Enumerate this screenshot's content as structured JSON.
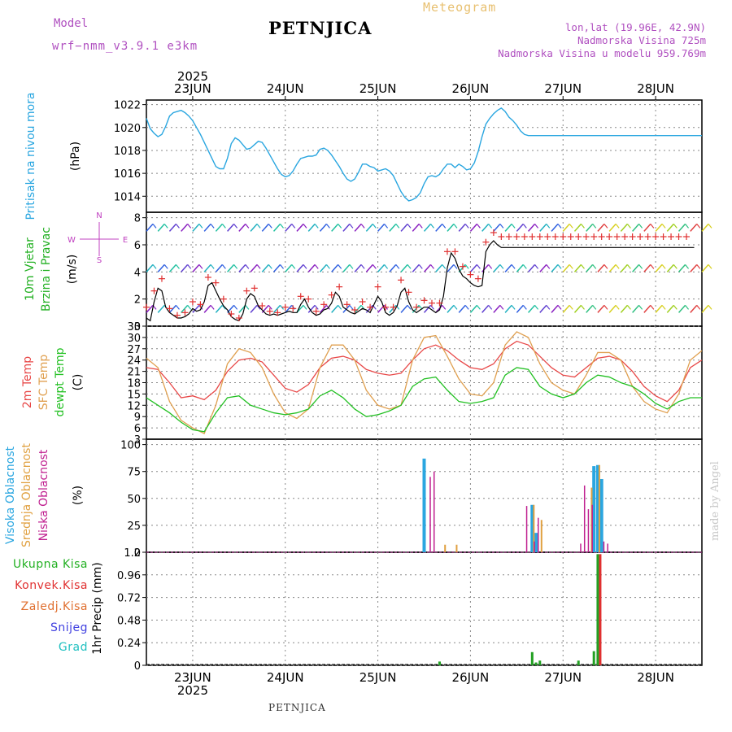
{
  "header": {
    "doc_title": "Meteogram",
    "station": "PETNJICA",
    "model_label": "Model",
    "model_name": "wrf−nmm_v3.9.1 e3km",
    "lonlat": "lon,lat (19.96E, 42.9N)",
    "altitude": "Nadmorska Visina 725m",
    "model_altitude": "Nadmorska Visina u modelu 959.769m"
  },
  "footer": {
    "station": "PETNJICA",
    "credit": "made by Angel"
  },
  "colors": {
    "pressure": "#2aa6e0",
    "temp2m": "#e84848",
    "sfc": "#e0a050",
    "dewpt": "#22c022",
    "wind_speed": "#000000",
    "gust_marker": "#e03030",
    "cloud_high": "#2aa6e0",
    "cloud_mid": "#e0a040",
    "cloud_low": "#c02090",
    "precip_total": "#22a022",
    "precip_conv": "#e03030",
    "precip_snow": "#4040e0"
  },
  "chart_data": [
    {
      "type": "line",
      "panel": "pressure",
      "title": "Pritisak na nivou mora",
      "ylabel": "Pritisak na nivou mora",
      "yunit": "(hPa)",
      "ylim": [
        1012.6,
        1022.4
      ],
      "yticks": [
        1014,
        1016,
        1018,
        1020,
        1022
      ],
      "top_date_labels": [
        "23JUN",
        "24JUN",
        "25JUN",
        "26JUN",
        "27JUN",
        "28JUN"
      ],
      "top_year": "2025",
      "x_hours_range": [
        0,
        144
      ],
      "x": [
        0,
        1,
        2,
        3,
        4,
        5,
        6,
        7,
        8,
        9,
        10,
        11,
        12,
        13,
        14,
        15,
        16,
        17,
        18,
        19,
        20,
        21,
        22,
        23,
        24,
        25,
        26,
        27,
        28,
        29,
        30,
        31,
        32,
        33,
        34,
        35,
        36,
        37,
        38,
        39,
        40,
        41,
        42,
        43,
        44,
        45,
        46,
        47,
        48,
        49,
        50,
        51,
        52,
        53,
        54,
        55,
        56,
        57,
        58,
        59,
        60,
        61,
        62,
        63,
        64,
        65,
        66,
        67,
        68,
        69,
        70,
        71,
        72,
        73,
        74,
        75,
        76,
        77,
        78,
        79,
        80,
        81,
        82,
        83,
        84,
        85,
        86,
        87,
        88,
        89,
        90,
        91,
        92,
        93,
        94,
        95,
        96,
        97,
        98,
        99,
        100,
        101,
        102,
        103,
        104,
        105,
        106,
        107,
        108,
        109,
        110,
        111,
        112,
        113,
        114,
        115,
        116,
        117,
        118,
        119,
        120,
        121,
        122,
        123,
        124,
        125,
        126,
        127,
        128,
        129,
        130,
        131,
        132,
        133,
        134,
        135,
        136,
        137,
        138,
        139,
        140,
        141,
        142,
        143,
        144
      ],
      "series": [
        {
          "name": "Pritisak",
          "values": [
            1020.8,
            1019.9,
            1019.5,
            1019.2,
            1019.4,
            1020.1,
            1021.0,
            1021.3,
            1021.4,
            1021.5,
            1021.3,
            1021.0,
            1020.6,
            1020.0,
            1019.4,
            1018.7,
            1018.0,
            1017.3,
            1016.6,
            1016.4,
            1016.4,
            1017.3,
            1018.6,
            1019.1,
            1018.9,
            1018.5,
            1018.1,
            1018.2,
            1018.5,
            1018.8,
            1018.7,
            1018.2,
            1017.6,
            1017.0,
            1016.4,
            1015.9,
            1015.7,
            1015.8,
            1016.2,
            1016.8,
            1017.3,
            1017.4,
            1017.5,
            1017.5,
            1017.6,
            1018.1,
            1018.2,
            1018.0,
            1017.6,
            1017.1,
            1016.6,
            1016.0,
            1015.5,
            1015.3,
            1015.5,
            1016.1,
            1016.8,
            1016.8,
            1016.6,
            1016.5,
            1016.2,
            1016.3,
            1016.4,
            1016.2,
            1015.8,
            1015.1,
            1014.4,
            1013.9,
            1013.6,
            1013.7,
            1013.9,
            1014.3,
            1015.1,
            1015.7,
            1015.8,
            1015.7,
            1015.9,
            1016.4,
            1016.8,
            1016.8,
            1016.5,
            1016.8,
            1016.6,
            1016.3,
            1016.4,
            1016.9,
            1017.9,
            1019.2,
            1020.3,
            1020.8,
            1021.2,
            1021.5,
            1021.7,
            1021.4,
            1020.9,
            1020.6,
            1020.2,
            1019.7,
            1019.4,
            1019.3,
            1019.3,
            1019.3,
            1019.3,
            1019.3,
            1019.3,
            1019.3,
            1019.3,
            1019.3,
            1019.3,
            1019.3,
            1019.3,
            1019.3,
            1019.3,
            1019.3,
            1019.3,
            1019.3,
            1019.3,
            1019.3,
            1019.3,
            1019.3,
            1019.3,
            1019.3,
            1019.3,
            1019.3,
            1019.3,
            1019.3,
            1019.3,
            1019.3,
            1019.3,
            1019.3,
            1019.3,
            1019.3,
            1019.3,
            1019.3,
            1019.3,
            1019.3,
            1019.3,
            1019.3,
            1019.3,
            1019.3,
            1019.3,
            1019.3,
            1019.3,
            1019.3,
            1019.3
          ]
        }
      ]
    },
    {
      "type": "line",
      "panel": "wind",
      "title": "10m Vjetar Brzina i Pravac",
      "ylabel_lines": [
        "10m Vjetar",
        "Brzina i Pravac"
      ],
      "yunit": "(m/s)",
      "compass": [
        "N",
        "W",
        "E",
        "S"
      ],
      "ylim": [
        0,
        8.4
      ],
      "yticks": [
        0,
        2,
        4,
        6,
        8
      ],
      "barb_rows": [
        1,
        4,
        7
      ],
      "series": [
        {
          "name": "Brzina vjetra",
          "values": [
            0.6,
            0.4,
            1.8,
            2.8,
            2.6,
            1.4,
            1.0,
            0.8,
            0.6,
            0.6,
            0.7,
            0.9,
            1.3,
            1.1,
            1.2,
            1.8,
            3.0,
            3.2,
            2.6,
            2.0,
            1.5,
            1.2,
            0.7,
            0.5,
            0.4,
            0.9,
            2.0,
            2.4,
            2.2,
            1.5,
            1.2,
            0.9,
            0.8,
            0.9,
            0.8,
            0.9,
            1.0,
            1.1,
            1.0,
            1.0,
            1.6,
            2.0,
            1.4,
            1.0,
            0.8,
            0.9,
            1.2,
            1.3,
            1.7,
            2.5,
            2.2,
            1.4,
            1.2,
            1.0,
            0.9,
            1.1,
            1.3,
            1.2,
            1.0,
            1.6,
            2.2,
            1.8,
            1.0,
            0.8,
            1.0,
            1.5,
            2.5,
            2.8,
            1.8,
            1.2,
            1.0,
            1.2,
            1.4,
            1.4,
            1.2,
            1.0,
            1.2,
            2.2,
            4.3,
            5.4,
            5.0,
            4.2,
            3.7,
            3.5,
            3.2,
            3.0,
            2.9,
            3.0,
            5.5,
            6.0,
            6.3,
            6.0,
            5.8,
            5.8,
            5.8,
            5.8,
            5.8,
            5.8,
            5.8,
            5.8,
            5.8,
            5.8,
            5.8,
            5.8,
            5.8,
            5.8,
            5.8,
            5.8,
            5.8,
            5.8,
            5.8,
            5.8,
            5.8,
            5.8,
            5.8,
            5.8,
            5.8,
            5.8,
            5.8,
            5.8,
            5.8,
            5.8,
            5.8,
            5.8,
            5.8,
            5.8,
            5.8,
            5.8,
            5.8,
            5.8,
            5.8,
            5.8,
            5.8,
            5.8,
            5.8,
            5.8,
            5.8,
            5.8,
            5.8,
            5.8,
            5.8,
            5.8,
            5.8
          ]
        },
        {
          "name": "Udari",
          "values": [
            1.4,
            0.8,
            2.6,
            3.8,
            3.5,
            2.0,
            1.3,
            1.0,
            0.8,
            0.9,
            1.0,
            1.2,
            1.8,
            1.4,
            1.6,
            2.5,
            3.6,
            3.8,
            3.2,
            2.6,
            2.0,
            1.5,
            0.9,
            0.7,
            0.6,
            1.3,
            2.6,
            3.0,
            2.8,
            2.0,
            1.5,
            1.2,
            1.1,
            1.2,
            1.0,
            1.2,
            1.4,
            1.5,
            1.3,
            1.4,
            2.2,
            2.7,
            2.0,
            1.4,
            1.1,
            1.2,
            1.6,
            1.8,
            2.3,
            3.4,
            2.9,
            1.9,
            1.6,
            1.3,
            1.2,
            1.5,
            1.8,
            1.6,
            1.4,
            2.2,
            2.9,
            2.4,
            1.4,
            1.1,
            1.4,
            2.1,
            3.4,
            3.9,
            2.5,
            1.7,
            1.4,
            1.7,
            1.9,
            1.9,
            1.7,
            1.4,
            1.7,
            3.0,
            5.5,
            5.8,
            5.5,
            4.8,
            4.4,
            4.1,
            3.8,
            3.6,
            3.5,
            3.6,
            6.2,
            6.6,
            6.9,
            6.8,
            6.6,
            6.6,
            6.6,
            6.6,
            6.6,
            6.6,
            6.6,
            6.6,
            6.6,
            6.6,
            6.6,
            6.6,
            6.6,
            6.6,
            6.6,
            6.6,
            6.6,
            6.6,
            6.6,
            6.6,
            6.6,
            6.6,
            6.6,
            6.6,
            6.6,
            6.6,
            6.6,
            6.6,
            6.6,
            6.6,
            6.6,
            6.6,
            6.6,
            6.6,
            6.6,
            6.6,
            6.6,
            6.6,
            6.6,
            6.6,
            6.6,
            6.6,
            6.6,
            6.6,
            6.6,
            6.6,
            6.6,
            6.6,
            6.6,
            6.6
          ]
        }
      ]
    },
    {
      "type": "line",
      "panel": "temperature",
      "ylabel_lines": [
        "2m Temp",
        "SFC Temp",
        "dewpt Temp"
      ],
      "yunit": "(C)",
      "ylim": [
        3,
        33
      ],
      "yticks": [
        3,
        6,
        9,
        12,
        15,
        18,
        21,
        24,
        27,
        30,
        33
      ],
      "x_hours": [
        0,
        3,
        6,
        9,
        12,
        15,
        18,
        21,
        24,
        27,
        30,
        33,
        36,
        39,
        42,
        45,
        48,
        51,
        54,
        57,
        60,
        63,
        66,
        69,
        72,
        75,
        78,
        81,
        84,
        87,
        90,
        93,
        96,
        99,
        102,
        105,
        108,
        111,
        114,
        117,
        120,
        123,
        126,
        129,
        132,
        135,
        138,
        141,
        144
      ],
      "series": [
        {
          "name": "2m Temp",
          "values": [
            22.0,
            21.5,
            18.0,
            14.0,
            14.5,
            13.5,
            16.0,
            21.0,
            24.0,
            24.5,
            23.5,
            20.0,
            16.5,
            15.5,
            17.5,
            22.0,
            24.5,
            25.0,
            24.0,
            21.5,
            20.5,
            20.0,
            20.5,
            24.0,
            27.0,
            28.0,
            26.5,
            24.0,
            22.0,
            21.5,
            23.0,
            27.0,
            29.0,
            28.0,
            25.0,
            22.0,
            20.0,
            19.5,
            22.0,
            24.5,
            25.0,
            24.0,
            21.0,
            17.0,
            14.5,
            13.0,
            16.0,
            22.0,
            24.0
          ]
        },
        {
          "name": "SFC Temp",
          "values": [
            24.5,
            22.0,
            13.0,
            8.0,
            6.0,
            4.5,
            12.0,
            23.0,
            27.0,
            26.0,
            22.0,
            15.0,
            10.0,
            8.5,
            11.0,
            22.0,
            28.0,
            28.0,
            24.0,
            16.0,
            12.0,
            11.0,
            12.0,
            24.0,
            30.0,
            30.5,
            25.0,
            19.0,
            15.0,
            14.5,
            18.0,
            28.0,
            31.5,
            30.0,
            23.0,
            18.0,
            16.0,
            15.0,
            20.0,
            26.0,
            26.0,
            24.0,
            17.0,
            13.0,
            11.0,
            10.0,
            15.0,
            24.0,
            26.5
          ]
        },
        {
          "name": "dewpt Temp",
          "values": [
            14.0,
            12.0,
            10.0,
            7.5,
            5.5,
            5.0,
            10.0,
            14.0,
            14.5,
            12.0,
            11.0,
            10.0,
            9.5,
            10.0,
            11.0,
            14.5,
            16.0,
            14.0,
            11.0,
            9.0,
            9.5,
            10.5,
            12.0,
            17.0,
            19.0,
            19.5,
            16.0,
            13.0,
            12.5,
            13.0,
            14.0,
            20.0,
            22.0,
            21.5,
            17.0,
            15.0,
            14.0,
            15.0,
            18.0,
            20.0,
            19.5,
            18.0,
            17.0,
            15.0,
            12.5,
            11.0,
            13.0,
            14.0,
            14.0
          ]
        }
      ]
    },
    {
      "type": "bar",
      "panel": "clouds",
      "ylabel_lines": [
        "Visoka Oblacnost",
        "Srednja Oblacnost",
        "Niska Oblacnost"
      ],
      "yunit": "(%)",
      "ylim": [
        0,
        105
      ],
      "yticks": [
        0,
        25,
        50,
        75,
        100
      ],
      "series": [
        {
          "name": "Visoka Oblacnost",
          "x_hours": [
            72,
            100,
            101,
            116,
            117,
            118
          ],
          "values": [
            87,
            44,
            18,
            80,
            81,
            68
          ]
        },
        {
          "name": "Srednja Oblacnost",
          "x_hours": [
            77,
            80,
            100,
            102,
            115,
            117
          ],
          "values": [
            7,
            7,
            44,
            30,
            60,
            81
          ]
        },
        {
          "name": "Niska Oblacnost",
          "x_hours": [
            74,
            75,
            99,
            101,
            102,
            113,
            114,
            115,
            116,
            119,
            120
          ],
          "values": [
            70,
            75,
            43,
            10,
            32,
            8,
            62,
            40,
            44,
            10,
            8
          ]
        }
      ]
    },
    {
      "type": "bar",
      "panel": "precip",
      "ylabel": "1hr Precip",
      "yunit": "(mm)",
      "legend": [
        "Ukupna Kisa",
        "Konvek.Kisa",
        "Zaledj.Kisa",
        "Snijeg",
        "Grad"
      ],
      "ylim": [
        0,
        1.2
      ],
      "yticks": [
        0,
        0.24,
        0.48,
        0.72,
        0.96,
        1.2
      ],
      "ytick_labels": [
        "0",
        "0.24",
        "0.48",
        "0.72",
        "0.96",
        "1.2"
      ],
      "bottom_date_labels": [
        "23JUN",
        "24JUN",
        "25JUN",
        "26JUN",
        "27JUN",
        "28JUN"
      ],
      "bottom_year": "2025",
      "series": [
        {
          "name": "Ukupna Kisa",
          "x_hours": [
            76,
            100,
            101,
            102,
            112,
            116,
            117
          ],
          "values": [
            0.04,
            0.14,
            0.03,
            0.05,
            0.05,
            0.15,
            1.18
          ]
        },
        {
          "name": "Konvek.Kisa",
          "x_hours": [
            117
          ],
          "values": [
            1.18
          ]
        }
      ]
    }
  ]
}
